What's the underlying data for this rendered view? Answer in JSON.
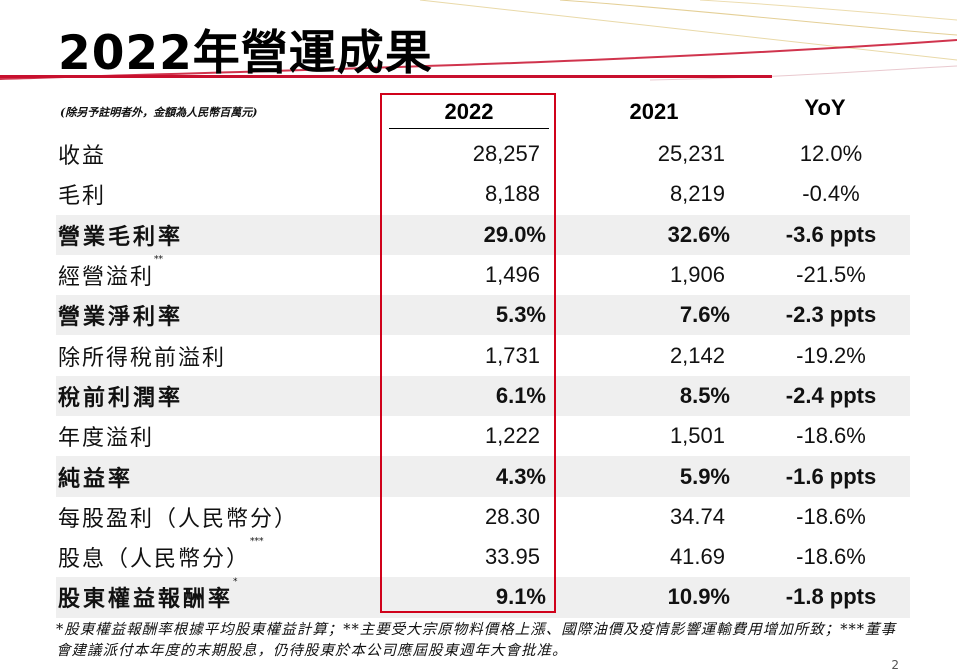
{
  "title": "2022年營運成果",
  "note": "(除另予註明者外，金額為人民幣百萬元)",
  "headers": {
    "y2022": "2022",
    "y2021": "2021",
    "yoy": "YoY"
  },
  "rows": [
    {
      "label": "收益",
      "mark": "",
      "v2022": "28,257",
      "v2021": "25,231",
      "yoy": "12.0%",
      "bold": false
    },
    {
      "label": "毛利",
      "mark": "",
      "v2022": "8,188",
      "v2021": "8,219",
      "yoy": "-0.4%",
      "bold": false
    },
    {
      "label": "營業毛利率",
      "mark": "",
      "v2022": "29.0%",
      "v2021": "32.6%",
      "yoy": "-3.6 ppts",
      "bold": true
    },
    {
      "label": "經營溢利",
      "mark": "**",
      "v2022": "1,496",
      "v2021": "1,906",
      "yoy": "-21.5%",
      "bold": false
    },
    {
      "label": "營業淨利率",
      "mark": "",
      "v2022": "5.3%",
      "v2021": "7.6%",
      "yoy": "-2.3 ppts",
      "bold": true
    },
    {
      "label": "除所得稅前溢利",
      "mark": "",
      "v2022": "1,731",
      "v2021": "2,142",
      "yoy": "-19.2%",
      "bold": false
    },
    {
      "label": "稅前利潤率",
      "mark": "",
      "v2022": "6.1%",
      "v2021": "8.5%",
      "yoy": "-2.4 ppts",
      "bold": true
    },
    {
      "label": "年度溢利",
      "mark": "",
      "v2022": "1,222",
      "v2021": "1,501",
      "yoy": "-18.6%",
      "bold": false
    },
    {
      "label": "純益率",
      "mark": "",
      "v2022": "4.3%",
      "v2021": "5.9%",
      "yoy": "-1.6 ppts",
      "bold": true
    },
    {
      "label": "每股盈利（人民幣分）",
      "mark": "",
      "v2022": "28.30",
      "v2021": "34.74",
      "yoy": "-18.6%",
      "bold": false
    },
    {
      "label": "股息（人民幣分）",
      "mark": "***",
      "v2022": "33.95",
      "v2021": "41.69",
      "yoy": "-18.6%",
      "bold": false
    },
    {
      "label": "股東權益報酬率",
      "mark": "*",
      "v2022": "9.1%",
      "v2021": "10.9%",
      "yoy": "-1.8 ppts",
      "bold": true
    }
  ],
  "footnote": "*股東權益報酬率根據平均股東權益計算；**主要受大宗原物料價格上漲、國際油價及疫情影響運輸費用增加所致；***董事會建議派付本年度的末期股息，仍待股東於本公司應屆股東週年大會批准。",
  "page_number": "2",
  "colors": {
    "accent_red": "#c8102e",
    "highlight_box": "#d0021b",
    "row_shade": "#efefef"
  }
}
